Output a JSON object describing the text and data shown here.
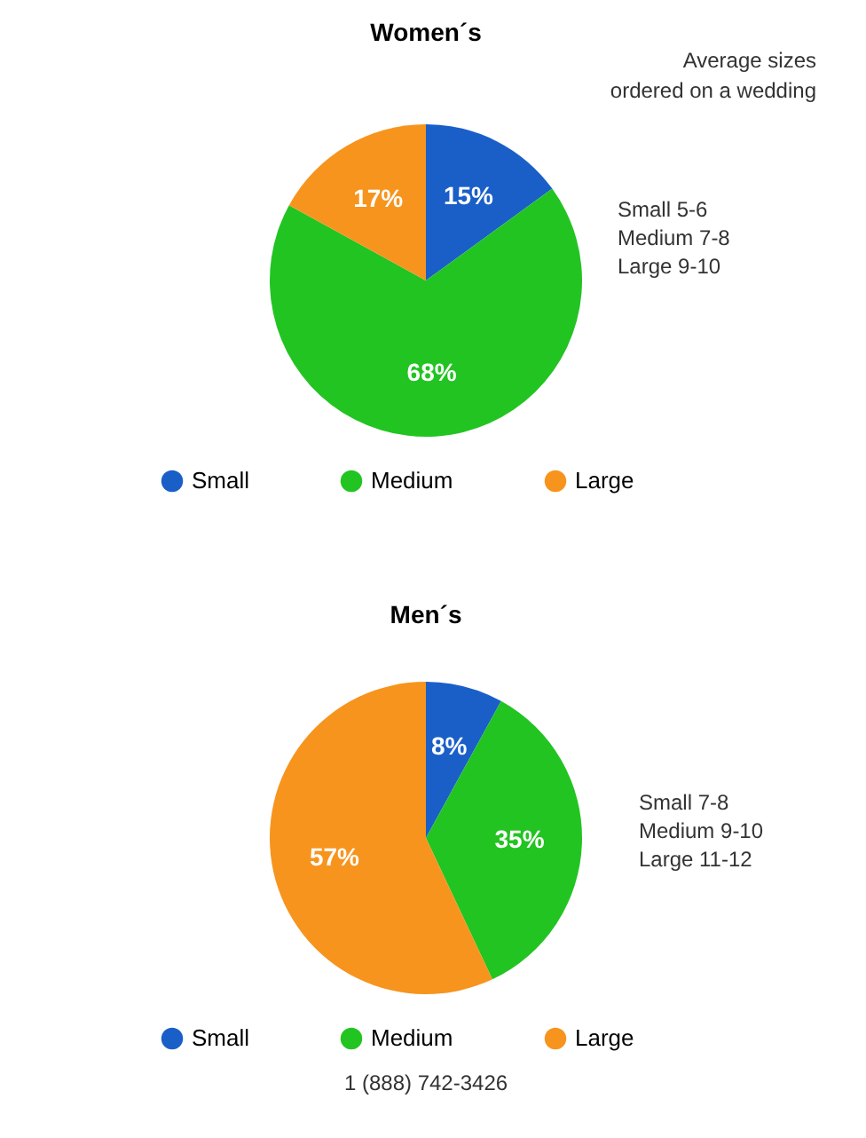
{
  "chart_data": [
    {
      "type": "pie",
      "title": "Women´s",
      "categories": [
        "Small",
        "Medium",
        "Large"
      ],
      "values": [
        15,
        68,
        17
      ],
      "value_labels": [
        "15%",
        "68%",
        "17%"
      ],
      "colors": [
        "#1a5fc8",
        "#22c422",
        "#f7941d"
      ],
      "legend": "bottom",
      "annotations": [
        "Average sizes ordered on a wedding",
        "Small 5-6",
        "Medium 7-8",
        "Large 9-10"
      ]
    },
    {
      "type": "pie",
      "title": "Men´s",
      "categories": [
        "Small",
        "Medium",
        "Large"
      ],
      "values": [
        8,
        35,
        57
      ],
      "value_labels": [
        "8%",
        "35%",
        "57%"
      ],
      "colors": [
        "#1a5fc8",
        "#22c422",
        "#f7941d"
      ],
      "legend": "bottom",
      "annotations": [
        "Small 7-8",
        "Medium 9-10",
        "Large 11-12",
        "1 (888) 742-3426"
      ]
    }
  ]
}
